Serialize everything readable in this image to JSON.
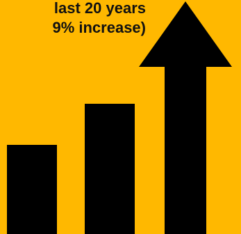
{
  "caption": {
    "line1": "last 20 years",
    "line2": "9% increase)"
  },
  "colors": {
    "background": "#ffb800",
    "ink": "#000000"
  },
  "icons": [
    "bar-short",
    "bar-medium",
    "growth-arrow-icon"
  ]
}
